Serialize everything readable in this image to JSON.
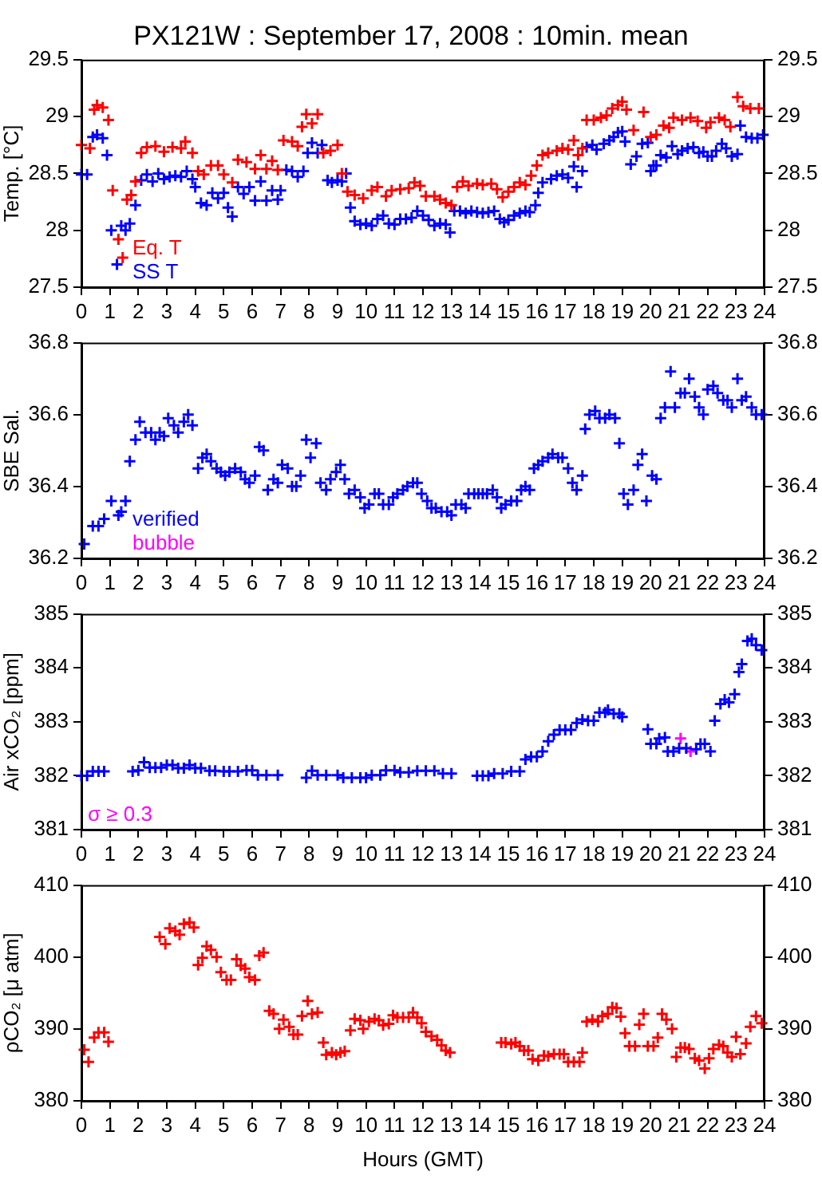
{
  "chart_data": [
    {
      "type": "scatter",
      "title": "PX121W : September 17, 2008 : 10min. mean",
      "ylabel": "Temp. [°C]",
      "xlim": [
        0,
        24
      ],
      "xticks": [
        0,
        1,
        2,
        3,
        4,
        5,
        6,
        7,
        8,
        9,
        10,
        11,
        12,
        13,
        14,
        15,
        16,
        17,
        18,
        19,
        20,
        21,
        22,
        23,
        24
      ],
      "ylim": [
        27.5,
        29.5
      ],
      "yticks": [
        27.5,
        28,
        28.5,
        29,
        29.5
      ],
      "y2lim": [
        27.5,
        29.5
      ],
      "y2ticks": [
        27.5,
        28,
        28.5,
        29,
        29.5
      ],
      "marker": "cross",
      "legend": "bottom left",
      "series": [
        {
          "name": "Eq. T",
          "color": "#ff0000",
          "x": [
            0,
            0.3,
            0.45,
            0.55,
            0.75,
            0.95,
            1.1,
            1.3,
            1.45,
            1.6,
            1.75,
            1.9,
            2.1,
            2.3,
            2.6,
            2.9,
            3.2,
            3.5,
            3.65,
            3.9,
            4.1,
            4.3,
            4.55,
            4.8,
            5,
            5.3,
            5.5,
            5.8,
            6.1,
            6.3,
            6.5,
            6.7,
            6.9,
            7.1,
            7.4,
            7.6,
            7.75,
            7.9,
            8.1,
            8.3,
            8.5,
            8.75,
            9,
            9.15,
            9.35,
            9.6,
            9.9,
            10.2,
            10.4,
            10.7,
            10.9,
            11.2,
            11.5,
            11.7,
            11.9,
            12.1,
            12.4,
            12.6,
            12.8,
            13,
            13.2,
            13.4,
            13.6,
            13.9,
            14.1,
            14.4,
            14.6,
            14.8,
            15,
            15.2,
            15.4,
            15.6,
            15.8,
            16,
            16.2,
            16.4,
            16.7,
            16.9,
            17.1,
            17.3,
            17.45,
            17.6,
            17.75,
            18,
            18.25,
            18.45,
            18.65,
            18.85,
            19,
            19.15,
            19.4,
            19.75,
            20,
            20.2,
            20.45,
            20.65,
            20.8,
            21.1,
            21.4,
            21.65,
            21.95,
            22.1,
            22.4,
            22.6,
            22.8,
            23.05,
            23.25,
            23.5,
            23.8
          ],
          "values": [
            28.75,
            28.72,
            29.06,
            29.1,
            29.08,
            28.97,
            28.35,
            27.92,
            27.76,
            28.27,
            28.31,
            28.43,
            28.68,
            28.73,
            28.74,
            28.69,
            28.73,
            28.72,
            28.78,
            28.68,
            28.52,
            28.49,
            28.57,
            28.57,
            28.49,
            28.42,
            28.62,
            28.6,
            28.54,
            28.66,
            28.54,
            28.61,
            28.53,
            28.79,
            28.78,
            28.74,
            28.91,
            29.02,
            28.94,
            29.02,
            28.68,
            28.7,
            28.75,
            28.5,
            28.34,
            28.31,
            28.28,
            28.35,
            28.38,
            28.3,
            28.35,
            28.36,
            28.37,
            28.42,
            28.39,
            28.3,
            28.3,
            28.27,
            28.24,
            28.22,
            28.38,
            28.43,
            28.39,
            28.41,
            28.4,
            28.41,
            28.36,
            28.29,
            28.34,
            28.38,
            28.42,
            28.4,
            28.48,
            28.57,
            28.66,
            28.68,
            28.7,
            28.72,
            28.71,
            28.79,
            28.66,
            28.72,
            28.97,
            28.97,
            28.99,
            29.01,
            29.07,
            29.1,
            29.13,
            29.06,
            28.88,
            29.04,
            28.82,
            28.84,
            28.92,
            28.9,
            28.99,
            28.97,
            28.99,
            28.96,
            28.9,
            28.95,
            28.99,
            28.97,
            28.91,
            29.17,
            29.09,
            29.07,
            29.07
          ]
        },
        {
          "name": "SS T",
          "color": "#0000ff",
          "x": [
            0,
            0.2,
            0.4,
            0.55,
            0.75,
            0.9,
            1.05,
            1.25,
            1.4,
            1.55,
            1.7,
            1.9,
            2.1,
            2.3,
            2.5,
            2.7,
            2.9,
            3.1,
            3.3,
            3.5,
            3.7,
            3.9,
            4,
            4.2,
            4.4,
            4.6,
            4.8,
            5,
            5.15,
            5.3,
            5.5,
            5.7,
            5.9,
            6.1,
            6.3,
            6.5,
            6.7,
            6.9,
            7,
            7.2,
            7.4,
            7.6,
            7.8,
            7.95,
            8.1,
            8.3,
            8.45,
            8.65,
            8.8,
            9,
            9.15,
            9.3,
            9.45,
            9.6,
            9.8,
            10,
            10.2,
            10.4,
            10.6,
            10.8,
            11,
            11.2,
            11.4,
            11.6,
            11.8,
            12,
            12.2,
            12.4,
            12.6,
            12.8,
            12.95,
            13.1,
            13.3,
            13.5,
            13.7,
            13.9,
            14.1,
            14.3,
            14.5,
            14.7,
            14.85,
            15,
            15.2,
            15.4,
            15.6,
            15.75,
            15.95,
            16.05,
            16.2,
            16.5,
            16.7,
            16.9,
            17.1,
            17.3,
            17.4,
            17.6,
            17.75,
            17.95,
            18.1,
            18.35,
            18.55,
            18.7,
            18.85,
            19,
            19.1,
            19.3,
            19.5,
            19.7,
            19.9,
            20,
            20.1,
            20.2,
            20.35,
            20.55,
            20.75,
            20.95,
            21.1,
            21.3,
            21.5,
            21.7,
            21.85,
            22,
            22.15,
            22.3,
            22.5,
            22.65,
            22.85,
            23.05,
            23.15,
            23.35,
            23.55,
            23.75,
            23.95
          ],
          "values": [
            28.49,
            28.49,
            28.82,
            28.84,
            28.81,
            28.66,
            28,
            27.7,
            28.04,
            28,
            28.06,
            28.22,
            28.44,
            28.49,
            28.43,
            28.5,
            28.45,
            28.47,
            28.48,
            28.47,
            28.52,
            28.45,
            28.38,
            28.24,
            28.22,
            28.33,
            28.28,
            28.33,
            28.2,
            28.12,
            28.38,
            28.32,
            28.38,
            28.26,
            28.43,
            28.26,
            28.35,
            28.27,
            28.35,
            28.53,
            28.52,
            28.47,
            28.52,
            28.68,
            28.77,
            28.68,
            28.75,
            28.44,
            28.42,
            28.44,
            28.43,
            28.5,
            28.2,
            28.08,
            28.05,
            28.06,
            28.04,
            28.1,
            28.13,
            28.06,
            28.05,
            28.1,
            28.1,
            28.11,
            28.17,
            28.13,
            28.09,
            28.04,
            28.06,
            28.05,
            27.98,
            28.17,
            28.17,
            28.15,
            28.17,
            28.16,
            28.15,
            28.16,
            28.17,
            28.1,
            28.07,
            28.09,
            28.13,
            28.15,
            28.17,
            28.16,
            28.22,
            28.33,
            28.42,
            28.45,
            28.48,
            28.49,
            28.46,
            28.56,
            28.38,
            28.52,
            28.73,
            28.75,
            28.71,
            28.76,
            28.79,
            28.82,
            28.86,
            28.87,
            28.78,
            28.58,
            28.65,
            28.76,
            28.77,
            28.52,
            28.57,
            28.57,
            28.66,
            28.64,
            28.74,
            28.67,
            28.7,
            28.72,
            28.73,
            28.68,
            28.69,
            28.65,
            28.65,
            28.7,
            28.76,
            28.72,
            28.65,
            28.67,
            28.92,
            28.82,
            28.81,
            28.81,
            28.84
          ]
        }
      ]
    },
    {
      "type": "scatter",
      "ylabel": "SBE Sal.",
      "xlim": [
        0,
        24
      ],
      "xticks": [
        0,
        1,
        2,
        3,
        4,
        5,
        6,
        7,
        8,
        9,
        10,
        11,
        12,
        13,
        14,
        15,
        16,
        17,
        18,
        19,
        20,
        21,
        22,
        23,
        24
      ],
      "ylim": [
        36.2,
        36.8
      ],
      "yticks": [
        36.2,
        36.4,
        36.6,
        36.8
      ],
      "y2lim": [
        36.2,
        36.8
      ],
      "y2ticks": [
        36.2,
        36.4,
        36.6,
        36.8
      ],
      "marker": "cross",
      "legend": "bottom left",
      "series": [
        {
          "name": "verified",
          "color": "#0000ff",
          "x": [
            0.1,
            0.4,
            0.6,
            0.8,
            1.05,
            1.3,
            1.4,
            1.55,
            1.7,
            1.9,
            2.05,
            2.25,
            2.45,
            2.6,
            2.75,
            2.9,
            3.05,
            3.25,
            3.4,
            3.6,
            3.75,
            3.9,
            4.1,
            4.25,
            4.4,
            4.55,
            4.75,
            4.9,
            5.05,
            5.2,
            5.4,
            5.6,
            5.75,
            5.9,
            6.1,
            6.25,
            6.4,
            6.55,
            6.75,
            6.9,
            7.05,
            7.25,
            7.4,
            7.55,
            7.7,
            7.9,
            8.05,
            8.25,
            8.4,
            8.6,
            8.75,
            8.95,
            9.1,
            9.25,
            9.4,
            9.6,
            9.8,
            9.95,
            10.1,
            10.3,
            10.45,
            10.6,
            10.8,
            10.95,
            11.1,
            11.3,
            11.45,
            11.65,
            11.8,
            11.95,
            12.15,
            12.3,
            12.45,
            12.65,
            12.85,
            13,
            13.15,
            13.35,
            13.5,
            13.6,
            13.8,
            13.95,
            14.1,
            14.25,
            14.45,
            14.6,
            14.75,
            14.9,
            15.1,
            15.3,
            15.45,
            15.6,
            15.75,
            15.9,
            16.05,
            16.2,
            16.4,
            16.55,
            16.75,
            16.9,
            17.1,
            17.25,
            17.4,
            17.6,
            17.7,
            17.85,
            18.05,
            18.2,
            18.4,
            18.55,
            18.75,
            18.9,
            19.05,
            19.2,
            19.4,
            19.55,
            19.7,
            19.85,
            20.05,
            20.2,
            20.35,
            20.5,
            20.7,
            20.85,
            21.05,
            21.2,
            21.35,
            21.55,
            21.7,
            21.85,
            22,
            22.2,
            22.35,
            22.55,
            22.7,
            22.85,
            23.05,
            23.2,
            23.35,
            23.55,
            23.7,
            23.9
          ],
          "values": [
            36.24,
            36.29,
            36.29,
            36.31,
            36.36,
            36.32,
            36.33,
            36.36,
            36.47,
            36.53,
            36.58,
            36.55,
            36.55,
            36.53,
            36.55,
            36.54,
            36.59,
            36.57,
            36.55,
            36.58,
            36.6,
            36.57,
            36.45,
            36.48,
            36.49,
            36.47,
            36.45,
            36.44,
            36.43,
            36.44,
            36.45,
            36.44,
            36.42,
            36.41,
            36.43,
            36.51,
            36.5,
            36.39,
            36.42,
            36.41,
            36.46,
            36.45,
            36.4,
            36.4,
            36.43,
            36.53,
            36.48,
            36.52,
            36.41,
            36.39,
            36.42,
            36.44,
            36.46,
            36.42,
            36.38,
            36.39,
            36.37,
            36.34,
            36.35,
            36.38,
            36.38,
            36.35,
            36.35,
            36.37,
            36.38,
            36.39,
            36.4,
            36.41,
            36.41,
            36.38,
            36.36,
            36.34,
            36.34,
            36.33,
            36.33,
            36.32,
            36.35,
            36.35,
            36.34,
            36.38,
            36.38,
            36.38,
            36.38,
            36.38,
            36.39,
            36.37,
            36.34,
            36.35,
            36.36,
            36.36,
            36.39,
            36.4,
            36.39,
            36.45,
            36.46,
            36.47,
            36.48,
            36.49,
            36.48,
            36.48,
            36.45,
            36.41,
            36.39,
            36.43,
            36.56,
            36.6,
            36.61,
            36.59,
            36.59,
            36.6,
            36.59,
            36.52,
            36.38,
            36.35,
            36.39,
            36.46,
            36.49,
            36.36,
            36.43,
            36.42,
            36.59,
            36.62,
            36.72,
            36.62,
            36.66,
            36.66,
            36.7,
            36.65,
            36.62,
            36.6,
            36.67,
            36.68,
            36.66,
            36.64,
            36.64,
            36.62,
            36.7,
            36.64,
            36.65,
            36.62,
            36.6,
            36.6
          ]
        },
        {
          "name": "bubble",
          "color": "#ff00ff"
        }
      ]
    },
    {
      "type": "scatter",
      "ylabel": "Air xCO₂ [ppm]",
      "xlim": [
        0,
        24
      ],
      "xticks": [
        0,
        1,
        2,
        3,
        4,
        5,
        6,
        7,
        8,
        9,
        10,
        11,
        12,
        13,
        14,
        15,
        16,
        17,
        18,
        19,
        20,
        21,
        22,
        23,
        24
      ],
      "ylim": [
        381,
        385
      ],
      "yticks": [
        381,
        382,
        383,
        384,
        385
      ],
      "y2lim": [
        381,
        385
      ],
      "y2ticks": [
        381,
        382,
        383,
        384,
        385
      ],
      "marker": "cross",
      "legend": "bottom left",
      "series": [
        {
          "color": "#0000ff",
          "x": [
            0,
            0.2,
            0.4,
            0.6,
            0.8,
            1.8,
            2,
            2.2,
            2.4,
            2.6,
            2.8,
            3,
            3.2,
            3.4,
            3.6,
            3.8,
            4,
            4.2,
            4.5,
            4.7,
            5,
            5.2,
            5.5,
            5.8,
            6,
            6.2,
            6.5,
            6.9,
            7.9,
            8.1,
            8.3,
            8.6,
            9,
            9.2,
            9.5,
            9.8,
            10,
            10.2,
            10.5,
            10.7,
            11,
            11.2,
            11.5,
            11.8,
            12.1,
            12.4,
            12.7,
            13,
            13.9,
            14.1,
            14.3,
            14.5,
            14.8,
            15.1,
            15.4,
            15.6,
            15.8,
            16,
            16.2,
            16.4,
            16.6,
            16.8,
            17,
            17.2,
            17.4,
            17.6,
            17.8,
            18,
            18.2,
            18.4,
            18.5,
            18.7,
            18.9,
            19,
            19.9,
            20,
            20.2,
            20.3,
            20.5,
            20.6,
            20.8,
            21,
            21.25,
            21.6,
            21.75,
            21.9,
            22.1,
            22.25,
            22.45,
            22.6,
            22.75,
            22.95,
            23.1,
            23.2,
            23.4,
            23.55,
            23.7,
            23.9
          ],
          "values": [
            382,
            382,
            382.08,
            382.08,
            382.08,
            382.08,
            382.1,
            382.25,
            382.15,
            382.15,
            382.15,
            382.2,
            382.2,
            382.14,
            382.14,
            382.2,
            382.14,
            382.14,
            382.09,
            382.09,
            382.08,
            382.08,
            382.08,
            382.1,
            382.1,
            382.01,
            382.01,
            382.01,
            381.96,
            382.09,
            382.01,
            382.01,
            382.01,
            381.96,
            381.96,
            381.96,
            381.96,
            382.01,
            382.01,
            382.1,
            382.1,
            382.06,
            382.06,
            382.09,
            382.09,
            382.09,
            382.04,
            382.04,
            382,
            382,
            382,
            382.04,
            382.04,
            382.08,
            382.08,
            382.3,
            382.35,
            382.35,
            382.45,
            382.64,
            382.76,
            382.85,
            382.85,
            382.85,
            382.98,
            383.04,
            383.02,
            383.02,
            383.17,
            383.17,
            383.22,
            383.15,
            383.15,
            383.09,
            382.86,
            382.59,
            382.59,
            382.69,
            382.71,
            382.45,
            382.45,
            382.51,
            382.51,
            382.49,
            382.59,
            382.59,
            382.45,
            383.02,
            383.33,
            383.41,
            383.36,
            383.51,
            383.92,
            384.07,
            384.5,
            384.54,
            384.42,
            384.33
          ]
        },
        {
          "name": "σ ≥ 0.3",
          "color": "#ff00ff",
          "x": [
            21.05,
            21.4
          ],
          "values": [
            382.69,
            382.45
          ]
        }
      ]
    },
    {
      "type": "scatter",
      "xlabel": "Hours (GMT)",
      "ylabel": "ρCO₂ [μ atm]",
      "xlim": [
        0,
        24
      ],
      "xticks": [
        0,
        1,
        2,
        3,
        4,
        5,
        6,
        7,
        8,
        9,
        10,
        11,
        12,
        13,
        14,
        15,
        16,
        17,
        18,
        19,
        20,
        21,
        22,
        23,
        24
      ],
      "ylim": [
        380,
        410
      ],
      "yticks": [
        380,
        390,
        400,
        410
      ],
      "y2lim": [
        380,
        410
      ],
      "y2ticks": [
        380,
        390,
        400,
        410
      ],
      "marker": "cross",
      "series": [
        {
          "color": "#ff0000",
          "x": [
            0.1,
            0.25,
            0.45,
            0.6,
            0.8,
            0.95,
            2.75,
            2.95,
            3.1,
            3.3,
            3.45,
            3.6,
            3.8,
            3.95,
            4.1,
            4.25,
            4.4,
            4.55,
            4.75,
            4.9,
            5.1,
            5.25,
            5.45,
            5.6,
            5.75,
            5.9,
            6.1,
            6.25,
            6.4,
            6.6,
            6.75,
            6.95,
            7.1,
            7.3,
            7.45,
            7.6,
            7.75,
            7.95,
            8.1,
            8.3,
            8.5,
            8.6,
            8.8,
            8.95,
            9.1,
            9.25,
            9.45,
            9.6,
            9.8,
            9.9,
            10.1,
            10.3,
            10.45,
            10.6,
            10.8,
            10.95,
            11.1,
            11.3,
            11.5,
            11.65,
            11.8,
            11.95,
            12.1,
            12.3,
            12.5,
            12.65,
            12.8,
            12.95,
            14.75,
            14.9,
            15.1,
            15.25,
            15.4,
            15.55,
            15.7,
            15.85,
            16.05,
            16.25,
            16.4,
            16.6,
            16.8,
            16.95,
            17.1,
            17.3,
            17.5,
            17.6,
            17.75,
            17.95,
            18.15,
            18.3,
            18.5,
            18.65,
            18.8,
            18.95,
            19.1,
            19.25,
            19.45,
            19.6,
            19.75,
            19.9,
            20.1,
            20.25,
            20.4,
            20.55,
            20.75,
            20.9,
            21.05,
            21.2,
            21.35,
            21.55,
            21.7,
            21.9,
            22.05,
            22.2,
            22.4,
            22.55,
            22.7,
            22.85,
            23,
            23.15,
            23.35,
            23.5,
            23.7,
            23.9
          ],
          "values": [
            387.1,
            385.4,
            388.8,
            389.5,
            389.5,
            388.2,
            402.8,
            401.8,
            404,
            403.6,
            403.1,
            404.6,
            404.8,
            404.1,
            398.9,
            399.9,
            401.5,
            401,
            400,
            397.9,
            396.8,
            396.8,
            399.7,
            398.8,
            398.4,
            397.2,
            396.8,
            400.2,
            400.6,
            392.5,
            392.1,
            390,
            391.3,
            390.3,
            389.2,
            389.2,
            391.8,
            393.9,
            392.1,
            392.3,
            388.1,
            386.4,
            386.7,
            386.4,
            386.7,
            386.9,
            389.8,
            391.4,
            391.2,
            390,
            391,
            391.4,
            391.2,
            390.5,
            390.7,
            391.9,
            391.6,
            391.6,
            391.6,
            392.3,
            391.6,
            390.8,
            389.6,
            389,
            388.5,
            387.7,
            387,
            386.7,
            388.1,
            388.1,
            387.9,
            388.1,
            387.6,
            387,
            387,
            385.8,
            385.6,
            386.3,
            386.2,
            386.5,
            386.5,
            386.5,
            385.4,
            385.4,
            385.4,
            386.7,
            391,
            391.3,
            391,
            391.8,
            392.1,
            393,
            392.9,
            391.7,
            389.4,
            387.6,
            387.6,
            390.6,
            392.1,
            387.6,
            387.6,
            388.8,
            392.1,
            391.3,
            390,
            386.1,
            387.4,
            387.4,
            387.2,
            385.9,
            385.6,
            384.5,
            385.9,
            387.2,
            387.8,
            387.6,
            386.7,
            386.1,
            388.9,
            386.5,
            388,
            390.3,
            391.8,
            390.8
          ]
        }
      ]
    }
  ]
}
